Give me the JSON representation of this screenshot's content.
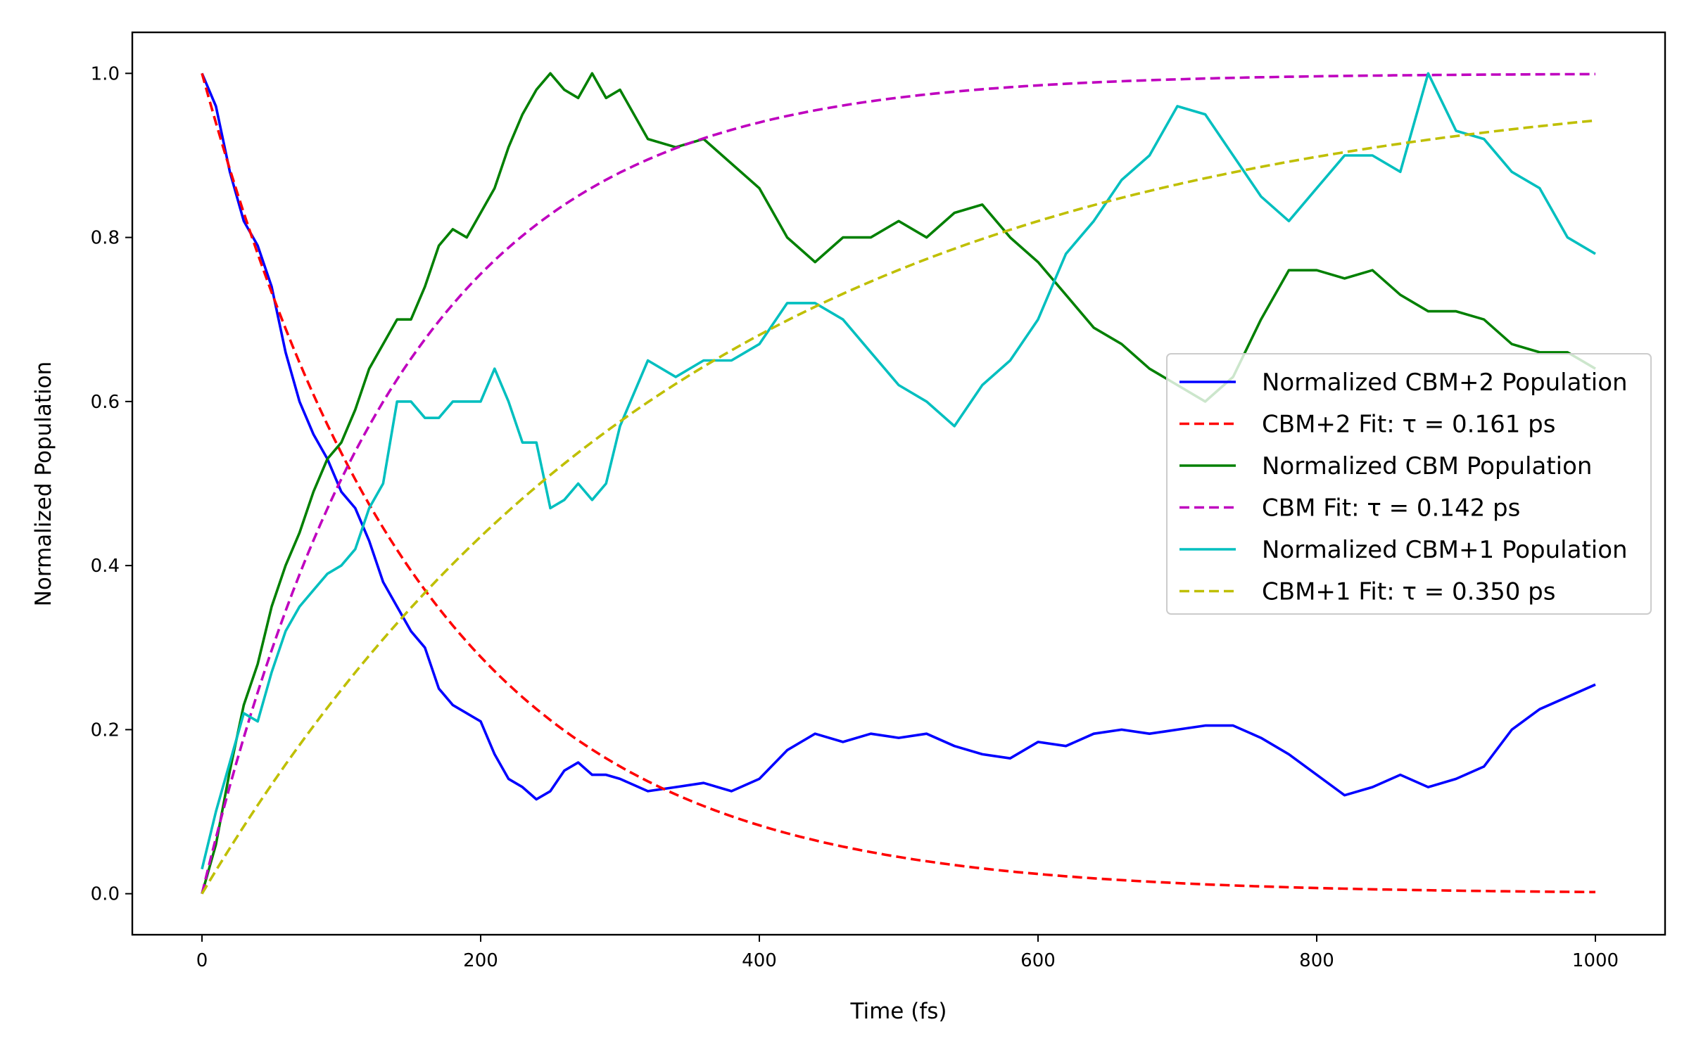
{
  "chart_data": {
    "type": "line",
    "xlabel": "Time (fs)",
    "ylabel": "Normalized Population",
    "xlim": [
      -50,
      1050
    ],
    "ylim": [
      -0.05,
      1.05
    ],
    "x_ticks": [
      0,
      200,
      400,
      600,
      800,
      1000
    ],
    "x_tick_labels": [
      "0",
      "200",
      "400",
      "600",
      "800",
      "1000"
    ],
    "y_ticks": [
      0.0,
      0.2,
      0.4,
      0.6,
      0.8,
      1.0
    ],
    "y_tick_labels": [
      "0.0",
      "0.2",
      "0.4",
      "0.6",
      "0.8",
      "1.0"
    ],
    "grid": false,
    "legend_position": "center-right",
    "series": [
      {
        "name": "Normalized CBM+2 Population",
        "color": "#0000ff",
        "style": "solid",
        "x": [
          0,
          10,
          20,
          30,
          40,
          50,
          60,
          70,
          80,
          90,
          100,
          110,
          120,
          130,
          140,
          150,
          160,
          170,
          180,
          190,
          200,
          210,
          220,
          230,
          240,
          250,
          260,
          270,
          280,
          290,
          300,
          320,
          340,
          360,
          380,
          400,
          420,
          440,
          460,
          480,
          500,
          520,
          540,
          560,
          580,
          600,
          620,
          640,
          660,
          680,
          700,
          720,
          740,
          760,
          780,
          800,
          820,
          840,
          860,
          880,
          900,
          920,
          940,
          960,
          980,
          1000
        ],
        "y": [
          1.0,
          0.96,
          0.88,
          0.82,
          0.79,
          0.74,
          0.66,
          0.6,
          0.56,
          0.53,
          0.49,
          0.47,
          0.43,
          0.38,
          0.35,
          0.32,
          0.3,
          0.25,
          0.23,
          0.22,
          0.21,
          0.17,
          0.14,
          0.13,
          0.115,
          0.125,
          0.15,
          0.16,
          0.145,
          0.145,
          0.14,
          0.125,
          0.13,
          0.135,
          0.125,
          0.14,
          0.175,
          0.195,
          0.185,
          0.195,
          0.19,
          0.195,
          0.18,
          0.17,
          0.165,
          0.185,
          0.18,
          0.195,
          0.2,
          0.195,
          0.2,
          0.205,
          0.205,
          0.19,
          0.17,
          0.145,
          0.12,
          0.13,
          0.145,
          0.13,
          0.14,
          0.155,
          0.2,
          0.225,
          0.24,
          0.255
        ]
      },
      {
        "name": "CBM+2 Fit: τ = 0.161 ps",
        "color": "#ff0000",
        "style": "dashed",
        "tau": 161,
        "model": "decay"
      },
      {
        "name": "Normalized CBM Population",
        "color": "#008000",
        "style": "solid",
        "x": [
          0,
          10,
          20,
          30,
          40,
          50,
          60,
          70,
          80,
          90,
          100,
          110,
          120,
          130,
          140,
          150,
          160,
          170,
          180,
          190,
          200,
          210,
          220,
          230,
          240,
          250,
          260,
          270,
          280,
          290,
          300,
          320,
          340,
          360,
          380,
          400,
          420,
          440,
          460,
          480,
          500,
          520,
          540,
          560,
          580,
          600,
          620,
          640,
          660,
          680,
          700,
          720,
          740,
          760,
          780,
          800,
          820,
          840,
          860,
          880,
          900,
          920,
          940,
          960,
          980,
          1000
        ],
        "y": [
          0.0,
          0.06,
          0.15,
          0.23,
          0.28,
          0.35,
          0.4,
          0.44,
          0.49,
          0.53,
          0.55,
          0.59,
          0.64,
          0.67,
          0.7,
          0.7,
          0.74,
          0.79,
          0.81,
          0.8,
          0.83,
          0.86,
          0.91,
          0.95,
          0.98,
          1.0,
          0.98,
          0.97,
          1.0,
          0.97,
          0.98,
          0.92,
          0.91,
          0.92,
          0.89,
          0.86,
          0.8,
          0.77,
          0.8,
          0.8,
          0.82,
          0.8,
          0.83,
          0.84,
          0.8,
          0.77,
          0.73,
          0.69,
          0.67,
          0.64,
          0.62,
          0.6,
          0.63,
          0.7,
          0.76,
          0.76,
          0.75,
          0.76,
          0.73,
          0.71,
          0.71,
          0.7,
          0.67,
          0.66,
          0.66,
          0.64
        ]
      },
      {
        "name": "CBM Fit: τ = 0.142 ps",
        "color": "#bf00bf",
        "style": "dashed",
        "tau": 142,
        "model": "rise"
      },
      {
        "name": "Normalized CBM+1 Population",
        "color": "#00bfbf",
        "style": "solid",
        "x": [
          0,
          10,
          20,
          30,
          40,
          50,
          60,
          70,
          80,
          90,
          100,
          110,
          120,
          130,
          140,
          150,
          160,
          170,
          180,
          190,
          200,
          210,
          220,
          230,
          240,
          250,
          260,
          270,
          280,
          290,
          300,
          320,
          340,
          360,
          380,
          400,
          420,
          440,
          460,
          480,
          500,
          520,
          540,
          560,
          580,
          600,
          620,
          640,
          660,
          680,
          700,
          720,
          740,
          760,
          780,
          800,
          820,
          840,
          860,
          880,
          900,
          920,
          940,
          960,
          980,
          1000
        ],
        "y": [
          0.03,
          0.1,
          0.16,
          0.22,
          0.21,
          0.27,
          0.32,
          0.35,
          0.37,
          0.39,
          0.4,
          0.42,
          0.47,
          0.5,
          0.6,
          0.6,
          0.58,
          0.58,
          0.6,
          0.6,
          0.6,
          0.64,
          0.6,
          0.55,
          0.55,
          0.47,
          0.48,
          0.5,
          0.48,
          0.5,
          0.57,
          0.65,
          0.63,
          0.65,
          0.65,
          0.67,
          0.72,
          0.72,
          0.7,
          0.66,
          0.62,
          0.6,
          0.57,
          0.62,
          0.65,
          0.7,
          0.78,
          0.82,
          0.87,
          0.9,
          0.96,
          0.95,
          0.9,
          0.85,
          0.82,
          0.86,
          0.9,
          0.9,
          0.88,
          1.0,
          0.93,
          0.92,
          0.88,
          0.86,
          0.8,
          0.78
        ]
      },
      {
        "name": "CBM+1 Fit: τ = 0.350 ps",
        "color": "#bfbf00",
        "style": "dashed",
        "tau": 350,
        "model": "rise"
      }
    ]
  }
}
